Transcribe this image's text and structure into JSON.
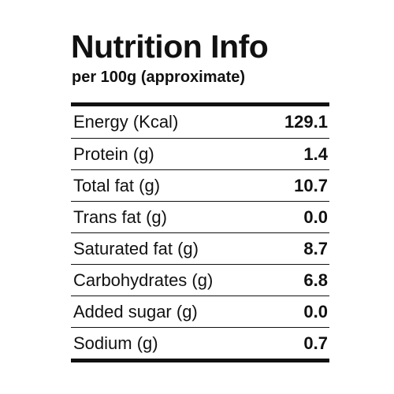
{
  "header": {
    "title": "Nutrition Info",
    "subtitle": "per 100g (approximate)"
  },
  "table": {
    "rows": [
      [
        "Energy (Kcal)",
        "129.1"
      ],
      [
        "Protein (g)",
        "1.4"
      ],
      [
        "Total fat (g)",
        "10.7"
      ],
      [
        "Trans fat (g)",
        "0.0"
      ],
      [
        "Saturated fat (g)",
        "8.7"
      ],
      [
        "Carbohydrates (g)",
        "6.8"
      ],
      [
        "Added sugar (g)",
        "0.0"
      ],
      [
        "Sodium (g)",
        "0.7"
      ]
    ]
  }
}
